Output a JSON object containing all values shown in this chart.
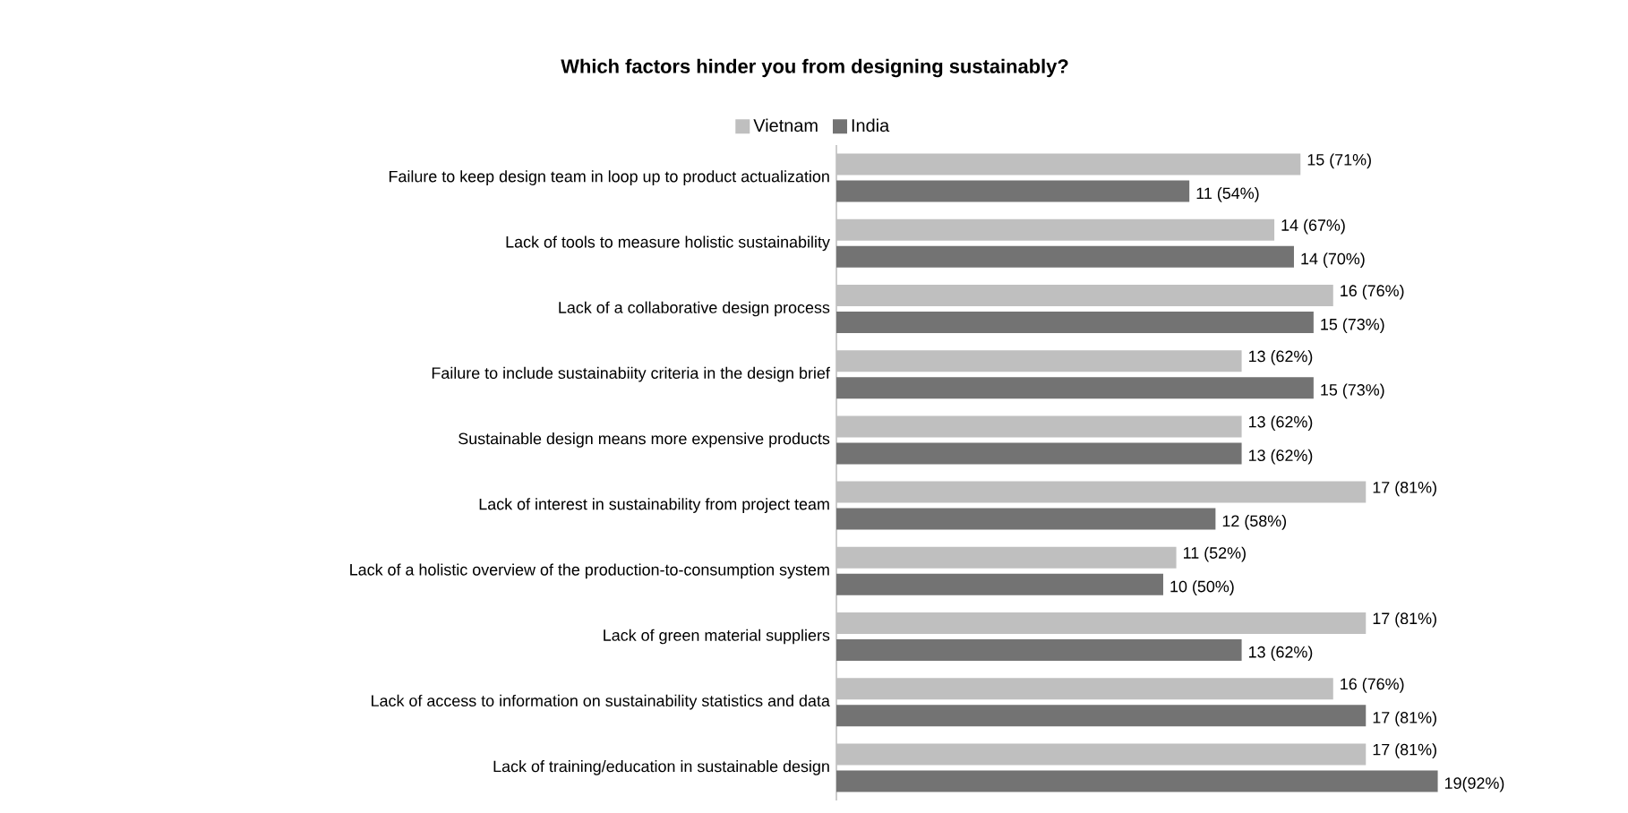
{
  "chart_data": {
    "type": "bar",
    "orientation": "horizontal",
    "title": "Which factors hinder you from designing sustainably?",
    "legend": "top",
    "categories": [
      "Failure to keep design team in loop up to product actualization",
      "Lack of tools to measure holistic sustainability",
      "Lack of a collaborative design process",
      "Failure to include sustainabiity criteria in the design brief",
      "Sustainable design means more expensive products",
      "Lack of interest in sustainability from project team",
      "Lack of a holistic overview of the production-to-consumption system",
      "Lack of green material suppliers",
      "Lack of access to information on sustainability statistics and data",
      "Lack of training/education in sustainable design"
    ],
    "series": [
      {
        "name": "Vietnam",
        "color": "#bfbfbf",
        "values": [
          71,
          67,
          76,
          62,
          62,
          81,
          52,
          81,
          76,
          81
        ],
        "value_labels": [
          "15 (71%)",
          "14 (67%)",
          "16 (76%)",
          "13 (62%)",
          "13 (62%)",
          "17 (81%)",
          "11 (52%)",
          "17 (81%)",
          "16 (76%)",
          "17 (81%)"
        ]
      },
      {
        "name": "India",
        "color": "#737373",
        "values": [
          54,
          70,
          73,
          73,
          62,
          58,
          50,
          62,
          81,
          92
        ],
        "value_labels": [
          "11 (54%)",
          "14 (70%)",
          "15 (73%)",
          "15 (73%)",
          "13 (62%)",
          "12 (58%)",
          "10 (50%)",
          "13 (62%)",
          "17 (81%)",
          "19(92%)"
        ]
      }
    ]
  }
}
